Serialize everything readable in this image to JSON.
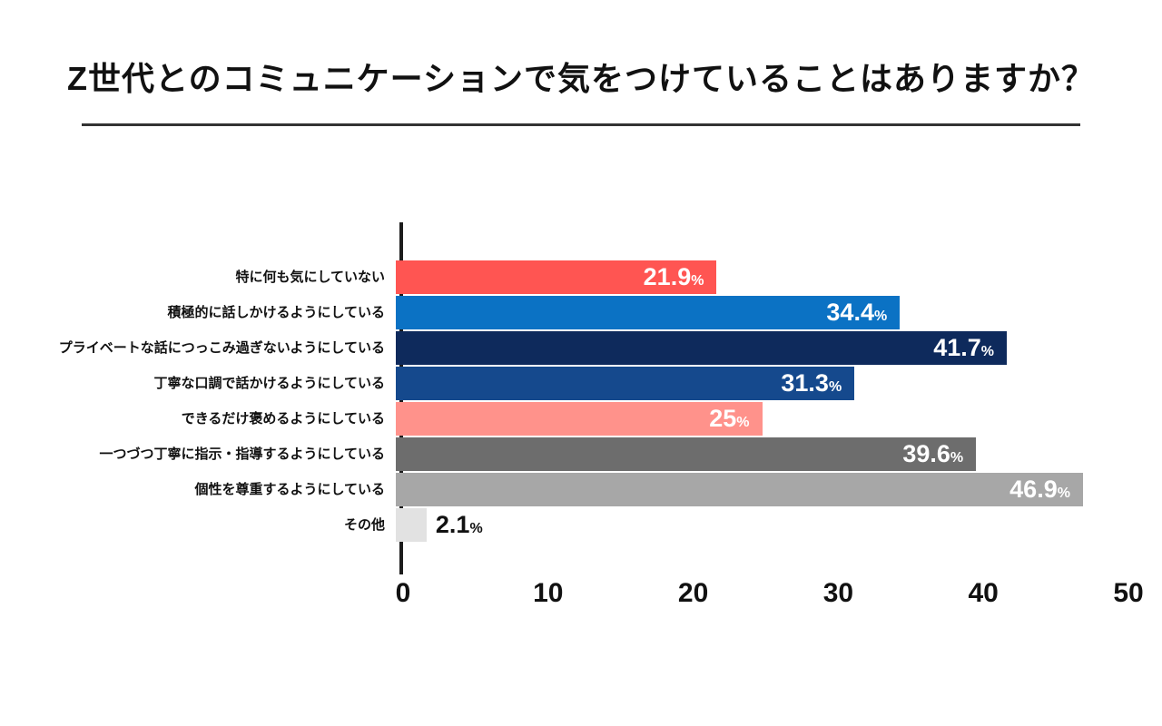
{
  "title": "Z世代とのコミュニケーションで気をつけていることはありますか？",
  "chart_data": {
    "type": "bar",
    "orientation": "horizontal",
    "title": "Z世代とのコミュニケーションで気をつけていることはありますか？",
    "categories": [
      "特に何も気にしていない",
      "積極的に話しかけるようにしている",
      "プライベートな話につっこみ過ぎないようにしている",
      "丁寧な口調で話かけるようにしている",
      "できるだけ褒めるようにしている",
      "一つづつ丁寧に指示・指導するようにしている",
      "個性を尊重するようにしている",
      "その他"
    ],
    "values": [
      21.9,
      34.4,
      41.7,
      31.3,
      25,
      39.6,
      46.9,
      2.1
    ],
    "value_labels": [
      "21.9",
      "34.4",
      "41.7",
      "31.3",
      "25",
      "39.6",
      "46.9",
      "2.1"
    ],
    "unit": "%",
    "bar_colors": [
      "#ff5552",
      "#0b72c4",
      "#0e2a5c",
      "#15498d",
      "#ff928b",
      "#6d6d6d",
      "#a7a7a7",
      "#e2e2e2"
    ],
    "label_inside": [
      true,
      true,
      true,
      true,
      true,
      true,
      true,
      false
    ],
    "xlim": [
      0,
      50
    ],
    "x_ticks": [
      0,
      10,
      20,
      30,
      40,
      50
    ],
    "xlabel": "",
    "ylabel": "",
    "grid": false,
    "legend": false,
    "axis_line_color": "#1c1c1c"
  }
}
